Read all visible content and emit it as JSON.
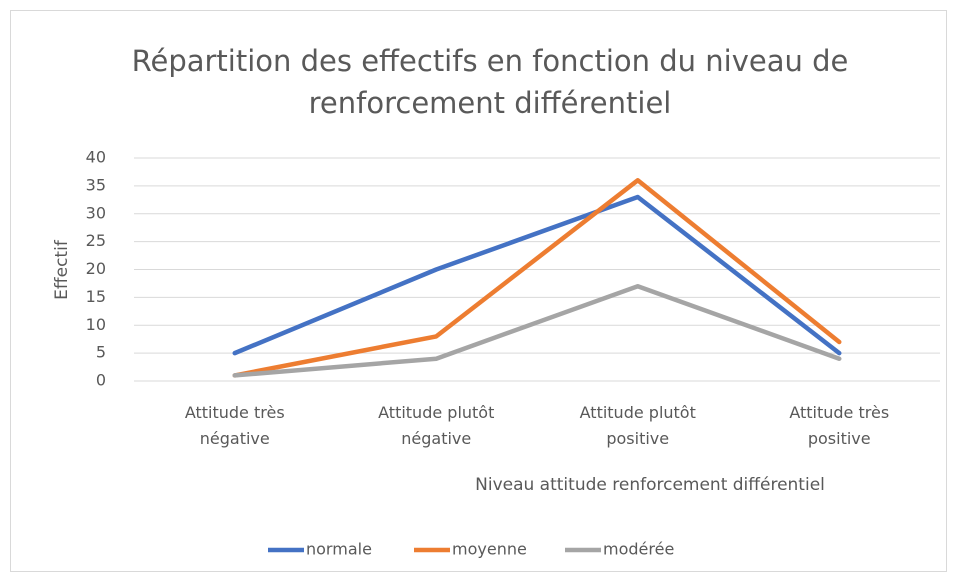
{
  "chart_data": {
    "type": "line",
    "title": "Répartition des effectifs en fonction du niveau de renforcement différentiel",
    "x_label": "Niveau attitude renforcement différentiel",
    "y_label": "Effectif",
    "categories": [
      "Attitude très négative",
      "Attitude plutôt négative",
      "Attitude plutôt positive",
      "Attitude très positive"
    ],
    "series": [
      {
        "name": "normale",
        "color": "#4472c4",
        "values": [
          5,
          20,
          33,
          5
        ]
      },
      {
        "name": "moyenne",
        "color": "#ed7d31",
        "values": [
          1,
          8,
          36,
          7
        ]
      },
      {
        "name": "modérée",
        "color": "#a5a5a5",
        "values": [
          1,
          4,
          17,
          4
        ]
      }
    ],
    "ylim": [
      0,
      40
    ],
    "yticks": [
      0,
      5,
      10,
      15,
      20,
      25,
      30,
      35,
      40
    ],
    "grid": true,
    "legend": "bottom"
  }
}
